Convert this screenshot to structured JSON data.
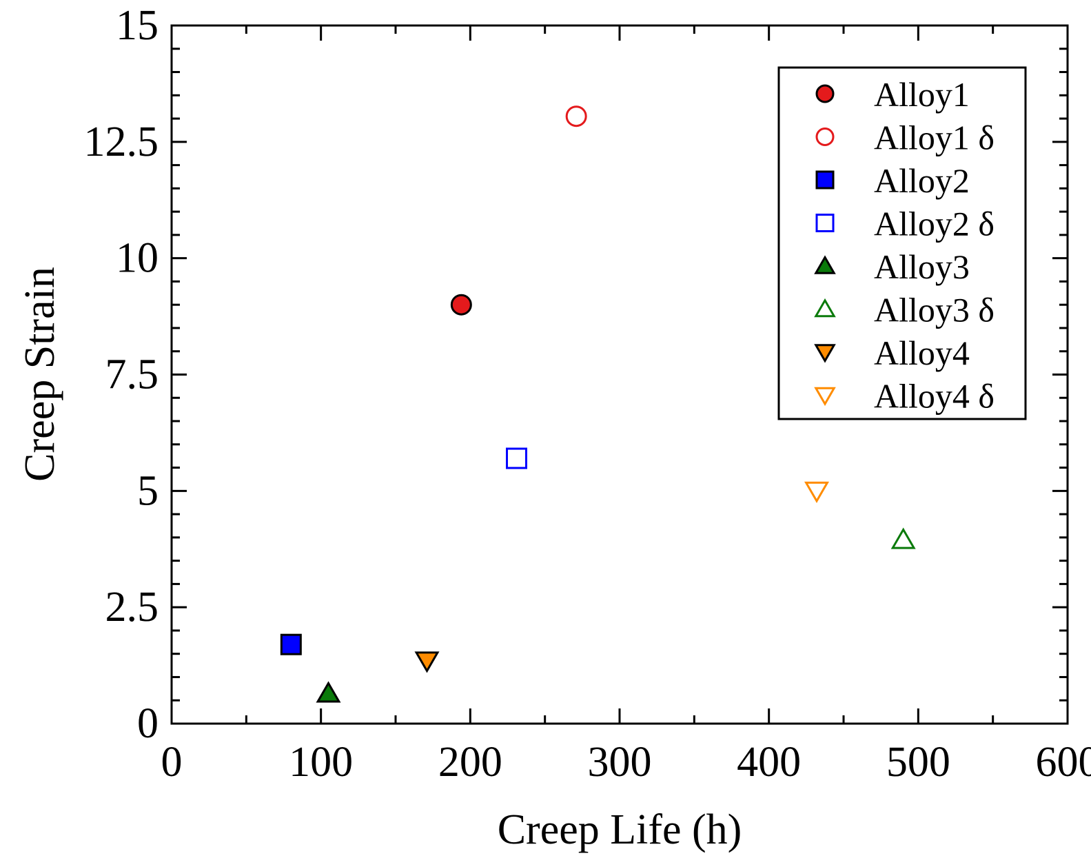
{
  "chart_data": {
    "type": "scatter",
    "xlabel": "Creep Life (h)",
    "ylabel": "Creep Strain",
    "xlim": [
      0,
      600
    ],
    "ylim": [
      0,
      15
    ],
    "xticks": [
      "0",
      "100",
      "200",
      "300",
      "400",
      "500",
      "600"
    ],
    "yticks": [
      "0",
      "2.5",
      "5",
      "7.5",
      "10",
      "12.5",
      "15"
    ],
    "grid": false,
    "legend_position": "top-right",
    "series": [
      {
        "name": "Alloy1",
        "marker": "circle",
        "filled": true,
        "color": "#e41a1c",
        "points": [
          [
            194,
            9.0
          ]
        ]
      },
      {
        "name": "Alloy1 δ",
        "marker": "circle",
        "filled": false,
        "color": "#e41a1c",
        "points": [
          [
            271,
            13.05
          ]
        ]
      },
      {
        "name": "Alloy2",
        "marker": "square",
        "filled": true,
        "color": "#0000ff",
        "points": [
          [
            80,
            1.7
          ]
        ]
      },
      {
        "name": "Alloy2 δ",
        "marker": "square",
        "filled": false,
        "color": "#0000ff",
        "points": [
          [
            231,
            5.7
          ]
        ]
      },
      {
        "name": "Alloy3",
        "marker": "triangle-up",
        "filled": true,
        "color": "#0a7a0a",
        "points": [
          [
            105,
            0.65
          ]
        ]
      },
      {
        "name": "Alloy3 δ",
        "marker": "triangle-up",
        "filled": false,
        "color": "#0a7a0a",
        "points": [
          [
            490,
            3.95
          ]
        ]
      },
      {
        "name": "Alloy4",
        "marker": "triangle-down",
        "filled": true,
        "color": "#ff8c00",
        "points": [
          [
            171,
            1.35
          ]
        ]
      },
      {
        "name": "Alloy4 δ",
        "marker": "triangle-down",
        "filled": false,
        "color": "#ff8c00",
        "points": [
          [
            432,
            5.0
          ]
        ]
      }
    ]
  }
}
